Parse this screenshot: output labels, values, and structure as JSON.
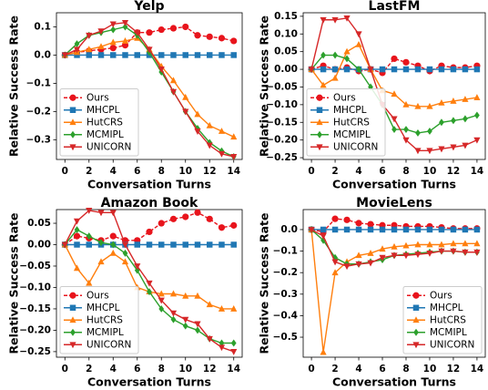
{
  "chart_data": [
    {
      "type": "line",
      "title": "Yelp",
      "x_label": "Conversation Turns",
      "y_label": "Relative Success Rate",
      "x": [
        0,
        1,
        2,
        3,
        4,
        5,
        6,
        7,
        8,
        9,
        10,
        11,
        12,
        13,
        14
      ],
      "xlim": [
        -0.7,
        14.7
      ],
      "xticks": [
        0,
        2,
        4,
        6,
        8,
        10,
        12,
        14
      ],
      "ylim": [
        -0.37,
        0.15
      ],
      "yticks": [
        {
          "value": -0.3,
          "label": "−0.3"
        },
        {
          "value": -0.2,
          "label": "−0.2"
        },
        {
          "value": -0.1,
          "label": "−0.1"
        },
        {
          "value": 0,
          "label": "0.0"
        },
        {
          "value": 0.1,
          "label": "0.1"
        }
      ],
      "legend": "lower left",
      "series": [
        {
          "name": "Ours",
          "color": "#e8141c",
          "marker": "circle",
          "dash": true,
          "values": [
            0,
            0.01,
            0.015,
            0.02,
            0.025,
            0.035,
            0.08,
            0.08,
            0.09,
            0.095,
            0.1,
            0.07,
            0.065,
            0.06,
            0.05
          ]
        },
        {
          "name": "MHCPL",
          "color": "#1f77b4",
          "marker": "square",
          "dash": false,
          "values": [
            0,
            0,
            0,
            0,
            0,
            0,
            0,
            0,
            0,
            0,
            0,
            0,
            0,
            0,
            0
          ]
        },
        {
          "name": "HutCRS",
          "color": "#ff7f0e",
          "marker": "triangle-up",
          "dash": false,
          "values": [
            0,
            0.01,
            0.02,
            0.03,
            0.045,
            0.05,
            0.06,
            0.02,
            -0.04,
            -0.09,
            -0.15,
            -0.21,
            -0.25,
            -0.27,
            -0.29
          ]
        },
        {
          "name": "MCMIPL",
          "color": "#2ca02c",
          "marker": "diamond",
          "dash": false,
          "values": [
            0,
            0.04,
            0.07,
            0.08,
            0.09,
            0.1,
            0.07,
            0.01,
            -0.06,
            -0.13,
            -0.2,
            -0.26,
            -0.31,
            -0.34,
            -0.36
          ]
        },
        {
          "name": "UNICORN",
          "color": "#d62728",
          "marker": "triangle-down",
          "dash": false,
          "values": [
            0,
            0.02,
            0.07,
            0.085,
            0.11,
            0.115,
            0.08,
            0.02,
            -0.05,
            -0.13,
            -0.2,
            -0.27,
            -0.32,
            -0.35,
            -0.36
          ]
        }
      ]
    },
    {
      "type": "line",
      "title": "LastFM",
      "x_label": "Conversation Turns",
      "y_label": "Relative Success Rate",
      "x": [
        0,
        1,
        2,
        3,
        4,
        5,
        6,
        7,
        8,
        9,
        10,
        11,
        12,
        13,
        14
      ],
      "xlim": [
        -0.7,
        14.7
      ],
      "xticks": [
        0,
        2,
        4,
        6,
        8,
        10,
        12,
        14
      ],
      "ylim": [
        -0.255,
        0.16
      ],
      "yticks": [
        {
          "value": -0.25,
          "label": "−0.25"
        },
        {
          "value": -0.2,
          "label": "−0.20"
        },
        {
          "value": -0.15,
          "label": "−0.15"
        },
        {
          "value": -0.1,
          "label": "−0.10"
        },
        {
          "value": -0.05,
          "label": "−0.05"
        },
        {
          "value": 0,
          "label": "0.00"
        },
        {
          "value": 0.05,
          "label": "0.05"
        },
        {
          "value": 0.1,
          "label": "0.10"
        },
        {
          "value": 0.15,
          "label": "0.15"
        }
      ],
      "legend": "lower left",
      "series": [
        {
          "name": "Ours",
          "color": "#e8141c",
          "marker": "circle",
          "dash": true,
          "values": [
            0,
            0.01,
            0,
            0.005,
            -0.005,
            0,
            -0.01,
            0.03,
            0.02,
            0.01,
            -0.005,
            0.01,
            0.005,
            0.005,
            0.01
          ]
        },
        {
          "name": "MHCPL",
          "color": "#1f77b4",
          "marker": "square",
          "dash": false,
          "values": [
            0,
            0,
            0,
            0,
            0,
            0,
            0,
            0,
            0,
            0,
            0,
            0,
            0,
            0,
            0
          ]
        },
        {
          "name": "HutCRS",
          "color": "#ff7f0e",
          "marker": "triangle-up",
          "dash": false,
          "values": [
            0,
            -0.045,
            -0.025,
            0.05,
            0.07,
            0,
            -0.06,
            -0.07,
            -0.1,
            -0.105,
            -0.105,
            -0.095,
            -0.09,
            -0.085,
            -0.08
          ]
        },
        {
          "name": "MCMIPL",
          "color": "#2ca02c",
          "marker": "diamond",
          "dash": false,
          "values": [
            0,
            0.04,
            0.04,
            0.03,
            0,
            -0.05,
            -0.1,
            -0.17,
            -0.17,
            -0.18,
            -0.175,
            -0.15,
            -0.145,
            -0.14,
            -0.13
          ]
        },
        {
          "name": "UNICORN",
          "color": "#d62728",
          "marker": "triangle-down",
          "dash": false,
          "values": [
            0,
            0.14,
            0.14,
            0.145,
            0.1,
            0,
            -0.1,
            -0.14,
            -0.2,
            -0.23,
            -0.23,
            -0.225,
            -0.22,
            -0.215,
            -0.2
          ]
        }
      ]
    },
    {
      "type": "line",
      "title": "Amazon Book",
      "x_label": "Conversation Turns",
      "y_label": "Relative Success Rate",
      "x": [
        0,
        1,
        2,
        3,
        4,
        5,
        6,
        7,
        8,
        9,
        10,
        11,
        12,
        13,
        14
      ],
      "xlim": [
        -0.7,
        14.7
      ],
      "xticks": [
        0,
        2,
        4,
        6,
        8,
        10,
        12,
        14
      ],
      "ylim": [
        -0.263,
        0.082
      ],
      "yticks": [
        {
          "value": -0.25,
          "label": "−0.25"
        },
        {
          "value": -0.2,
          "label": "−0.20"
        },
        {
          "value": -0.15,
          "label": "−0.15"
        },
        {
          "value": -0.1,
          "label": "−0.10"
        },
        {
          "value": -0.05,
          "label": "−0.05"
        },
        {
          "value": 0,
          "label": "0.00"
        },
        {
          "value": 0.05,
          "label": "0.05"
        }
      ],
      "legend": "lower left",
      "series": [
        {
          "name": "Ours",
          "color": "#e8141c",
          "marker": "circle",
          "dash": true,
          "values": [
            0,
            0.02,
            0.015,
            0.01,
            0.02,
            0.01,
            0.01,
            0.03,
            0.05,
            0.06,
            0.065,
            0.075,
            0.06,
            0.04,
            0.045
          ]
        },
        {
          "name": "MHCPL",
          "color": "#1f77b4",
          "marker": "square",
          "dash": false,
          "values": [
            0,
            0,
            0,
            0,
            0,
            0,
            0,
            0,
            0,
            0,
            0,
            0,
            0,
            0,
            0
          ]
        },
        {
          "name": "HutCRS",
          "color": "#ff7f0e",
          "marker": "triangle-up",
          "dash": false,
          "values": [
            0,
            -0.055,
            -0.09,
            -0.04,
            -0.02,
            -0.04,
            -0.1,
            -0.11,
            -0.115,
            -0.115,
            -0.12,
            -0.12,
            -0.14,
            -0.15,
            -0.15
          ]
        },
        {
          "name": "MCMIPL",
          "color": "#2ca02c",
          "marker": "diamond",
          "dash": false,
          "values": [
            0,
            0.035,
            0.02,
            0.005,
            0,
            -0.02,
            -0.06,
            -0.11,
            -0.15,
            -0.175,
            -0.19,
            -0.2,
            -0.22,
            -0.23,
            -0.23
          ]
        },
        {
          "name": "UNICORN",
          "color": "#d62728",
          "marker": "triangle-down",
          "dash": false,
          "values": [
            0,
            0.055,
            0.08,
            0.075,
            0.075,
            0,
            -0.05,
            -0.09,
            -0.13,
            -0.16,
            -0.175,
            -0.185,
            -0.22,
            -0.24,
            -0.25
          ]
        }
      ]
    },
    {
      "type": "line",
      "title": "MovieLens",
      "x_label": "Conversation Turns",
      "y_label": "Relative Success Rate",
      "x": [
        0,
        1,
        2,
        3,
        4,
        5,
        6,
        7,
        8,
        9,
        10,
        11,
        12,
        13,
        14
      ],
      "xlim": [
        -0.7,
        14.7
      ],
      "xticks": [
        0,
        2,
        4,
        6,
        8,
        10,
        12,
        14
      ],
      "ylim": [
        -0.593,
        0.093
      ],
      "yticks": [
        {
          "value": -0.5,
          "label": "−0.5"
        },
        {
          "value": -0.4,
          "label": "−0.4"
        },
        {
          "value": -0.3,
          "label": "−0.3"
        },
        {
          "value": -0.2,
          "label": "−0.2"
        },
        {
          "value": -0.1,
          "label": "−0.1"
        },
        {
          "value": 0,
          "label": "0.0"
        }
      ],
      "legend": "lower right",
      "series": [
        {
          "name": "Ours",
          "color": "#e8141c",
          "marker": "circle",
          "dash": true,
          "values": [
            0,
            -0.01,
            0.05,
            0.045,
            0.03,
            0.025,
            0.02,
            0.02,
            0.015,
            0.015,
            0.015,
            0.01,
            0.005,
            0.005,
            0.005
          ]
        },
        {
          "name": "MHCPL",
          "color": "#1f77b4",
          "marker": "square",
          "dash": false,
          "values": [
            0,
            0,
            0,
            0,
            0,
            0,
            0,
            0,
            0,
            0,
            0,
            0,
            0,
            0,
            0
          ]
        },
        {
          "name": "HutCRS",
          "color": "#ff7f0e",
          "marker": "triangle-up",
          "dash": false,
          "values": [
            0,
            -0.57,
            -0.2,
            -0.15,
            -0.12,
            -0.11,
            -0.09,
            -0.08,
            -0.075,
            -0.07,
            -0.07,
            -0.07,
            -0.065,
            -0.065,
            -0.065
          ]
        },
        {
          "name": "MCMIPL",
          "color": "#2ca02c",
          "marker": "diamond",
          "dash": false,
          "values": [
            0,
            -0.05,
            -0.13,
            -0.16,
            -0.16,
            -0.15,
            -0.14,
            -0.12,
            -0.115,
            -0.11,
            -0.105,
            -0.1,
            -0.1,
            -0.105,
            -0.105
          ]
        },
        {
          "name": "UNICORN",
          "color": "#d62728",
          "marker": "triangle-down",
          "dash": false,
          "values": [
            0,
            -0.03,
            -0.15,
            -0.17,
            -0.16,
            -0.155,
            -0.13,
            -0.12,
            -0.12,
            -0.115,
            -0.11,
            -0.1,
            -0.1,
            -0.105,
            -0.105
          ]
        }
      ]
    }
  ]
}
